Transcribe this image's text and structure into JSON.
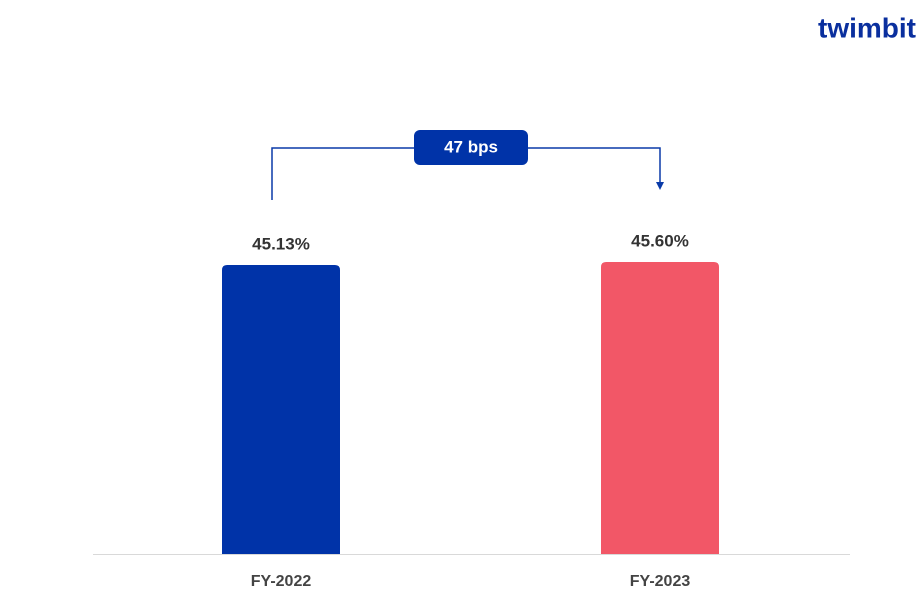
{
  "logo": "twimbit",
  "chart_data": {
    "type": "bar",
    "categories": [
      "FY-2022",
      "FY-2023"
    ],
    "values": [
      45.13,
      45.6
    ],
    "value_labels": [
      "45.13%",
      "45.60%"
    ],
    "colors": [
      "#0033a8",
      "#f25767"
    ],
    "annotation": "47 bps"
  }
}
